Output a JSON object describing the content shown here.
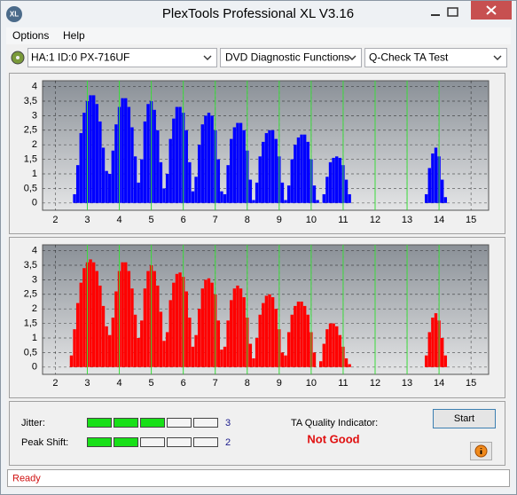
{
  "window": {
    "app_icon": "XL",
    "title": "PlexTools Professional XL V3.16"
  },
  "menu": [
    "Options",
    "Help"
  ],
  "toolbar": {
    "drive": "HA:1 ID:0  PX-716UF",
    "function": "DVD Diagnostic Functions",
    "test": "Q-Check TA Test"
  },
  "chart_data": [
    {
      "type": "bar",
      "color": "#0000ff",
      "grid": true,
      "xtick_line_color": "#3cdc3c",
      "xlim": [
        1.6,
        15.55
      ],
      "ylim": [
        -0.25,
        4.2
      ],
      "xticks": [
        2,
        3,
        4,
        5,
        6,
        7,
        8,
        9,
        10,
        11,
        12,
        13,
        14,
        15
      ],
      "yticks": [
        0,
        {
          "value": 0.5,
          "label": "0,5"
        },
        1,
        {
          "value": 1.5,
          "label": "1,5"
        },
        2,
        {
          "value": 2.5,
          "label": "2,5"
        },
        3,
        {
          "value": 3.5,
          "label": "3,5"
        },
        4
      ],
      "x": [
        2.6,
        2.7,
        2.8,
        2.9,
        3,
        3.1,
        3.2,
        3.3,
        3.4,
        3.5,
        3.6,
        3.7,
        3.8,
        3.9,
        4,
        4.1,
        4.2,
        4.3,
        4.4,
        4.5,
        4.6,
        4.7,
        4.8,
        4.9,
        5,
        5.1,
        5.2,
        5.3,
        5.4,
        5.5,
        5.6,
        5.7,
        5.8,
        5.9,
        6,
        6.1,
        6.2,
        6.3,
        6.4,
        6.5,
        6.6,
        6.7,
        6.8,
        6.9,
        7,
        7.1,
        7.2,
        7.3,
        7.4,
        7.5,
        7.6,
        7.7,
        7.8,
        7.9,
        8,
        8.1,
        8.2,
        8.3,
        8.4,
        8.5,
        8.6,
        8.7,
        8.8,
        8.9,
        9,
        9.1,
        9.2,
        9.3,
        9.4,
        9.5,
        9.6,
        9.7,
        9.8,
        9.9,
        10,
        10.1,
        10.2,
        10.3,
        10.4,
        10.5,
        10.6,
        10.7,
        10.8,
        10.9,
        11,
        11.1,
        11.2,
        13.6,
        13.7,
        13.8,
        13.9,
        14,
        14.1,
        14.2
      ],
      "values": [
        0.3,
        1.3,
        2.4,
        3.1,
        3.5,
        3.7,
        3.7,
        3.4,
        2.8,
        1.9,
        1.1,
        1.0,
        1.8,
        2.7,
        3.3,
        3.6,
        3.6,
        3.3,
        2.6,
        1.6,
        0.7,
        1.5,
        2.8,
        3.4,
        3.5,
        3.2,
        2.5,
        1.4,
        0.5,
        1.0,
        2.2,
        2.9,
        3.3,
        3.3,
        3.1,
        2.5,
        1.4,
        0.4,
        0.9,
        2.0,
        2.7,
        3.0,
        3.1,
        3.0,
        2.5,
        1.5,
        0.4,
        0.3,
        1.3,
        2.2,
        2.6,
        2.75,
        2.75,
        2.5,
        1.8,
        0.8,
        0.1,
        0.7,
        1.6,
        2.1,
        2.4,
        2.5,
        2.5,
        2.2,
        1.6,
        0.7,
        0.1,
        0.6,
        1.5,
        2.0,
        2.25,
        2.35,
        2.35,
        2.1,
        1.5,
        0.6,
        0.1,
        0,
        0.3,
        0.9,
        1.4,
        1.55,
        1.6,
        1.55,
        1.3,
        0.8,
        0.3,
        0.3,
        1.2,
        1.7,
        1.9,
        1.6,
        0.8,
        0.2
      ]
    },
    {
      "type": "bar",
      "color": "#ff0000",
      "grid": true,
      "xtick_line_color": "#3cdc3c",
      "xlim": [
        1.6,
        15.55
      ],
      "ylim": [
        -0.25,
        4.2
      ],
      "xticks": [
        2,
        3,
        4,
        5,
        6,
        7,
        8,
        9,
        10,
        11,
        12,
        13,
        14,
        15
      ],
      "yticks": [
        0,
        {
          "value": 0.5,
          "label": "0,5"
        },
        1,
        {
          "value": 1.5,
          "label": "1,5"
        },
        2,
        {
          "value": 2.5,
          "label": "2,5"
        },
        3,
        {
          "value": 3.5,
          "label": "3,5"
        },
        4
      ],
      "x": [
        2.5,
        2.6,
        2.7,
        2.8,
        2.9,
        3,
        3.1,
        3.2,
        3.3,
        3.4,
        3.5,
        3.6,
        3.7,
        3.8,
        3.9,
        4,
        4.1,
        4.2,
        4.3,
        4.4,
        4.5,
        4.6,
        4.7,
        4.8,
        4.9,
        5,
        5.1,
        5.2,
        5.3,
        5.4,
        5.5,
        5.6,
        5.7,
        5.8,
        5.9,
        6,
        6.1,
        6.2,
        6.3,
        6.4,
        6.5,
        6.6,
        6.7,
        6.8,
        6.9,
        7,
        7.1,
        7.2,
        7.3,
        7.4,
        7.5,
        7.6,
        7.7,
        7.8,
        7.9,
        8,
        8.1,
        8.2,
        8.3,
        8.4,
        8.5,
        8.6,
        8.7,
        8.8,
        8.9,
        9,
        9.1,
        9.2,
        9.3,
        9.4,
        9.5,
        9.6,
        9.7,
        9.8,
        9.9,
        10,
        10.1,
        10.2,
        10.3,
        10.4,
        10.5,
        10.6,
        10.7,
        10.8,
        10.9,
        11,
        11.1,
        11.2,
        13.6,
        13.7,
        13.8,
        13.9,
        14,
        14.1,
        14.2
      ],
      "values": [
        0.4,
        1.3,
        2.2,
        2.9,
        3.4,
        3.6,
        3.7,
        3.6,
        3.3,
        2.8,
        2.1,
        1.4,
        1.1,
        1.7,
        2.6,
        3.3,
        3.6,
        3.6,
        3.3,
        2.7,
        1.8,
        1.0,
        1.6,
        2.7,
        3.3,
        3.5,
        3.3,
        2.8,
        1.9,
        0.9,
        1.2,
        2.3,
        2.9,
        3.2,
        3.25,
        3.1,
        2.6,
        1.7,
        0.7,
        1.1,
        2.0,
        2.7,
        3.0,
        3.05,
        2.9,
        2.5,
        1.6,
        0.6,
        0.7,
        1.6,
        2.3,
        2.7,
        2.8,
        2.7,
        2.4,
        1.7,
        0.8,
        0.3,
        1.0,
        1.8,
        2.2,
        2.45,
        2.5,
        2.4,
        2.0,
        1.3,
        0.5,
        0.4,
        1.2,
        1.8,
        2.1,
        2.25,
        2.25,
        2.1,
        1.8,
        1.2,
        0.5,
        0,
        0.2,
        0.8,
        1.3,
        1.5,
        1.5,
        1.4,
        1.1,
        0.7,
        0.3,
        0.1,
        0.4,
        1.2,
        1.7,
        1.85,
        1.6,
        1.0,
        0.4
      ]
    }
  ],
  "quality": {
    "jitter": {
      "label": "Jitter:",
      "value": 3
    },
    "peak_shift": {
      "label": "Peak Shift:",
      "value": 2
    },
    "indicator_label": "TA Quality Indicator:",
    "indicator": "Not Good"
  },
  "start_button": "Start",
  "status": "Ready"
}
